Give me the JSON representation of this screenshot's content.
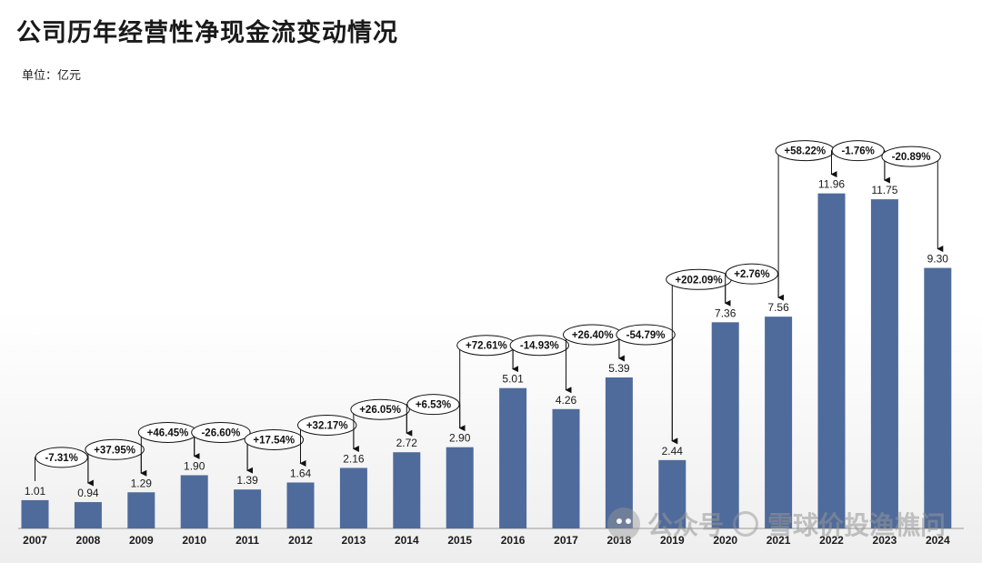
{
  "title": "公司历年经营性净现金流变动情况",
  "unit_label": "单位：亿元",
  "watermark": {
    "text_a": "公众号",
    "text_b": "雪球价投渔樵问"
  },
  "colors": {
    "bar": "#4f6b9b",
    "text": "#1a1a1a",
    "arrow": "#111111"
  },
  "chart_data": {
    "type": "bar",
    "title": "公司历年经营性净现金流变动情况",
    "ylabel": "",
    "xlabel": "",
    "ylim": [
      0,
      14
    ],
    "grid": false,
    "legend": "none",
    "categories": [
      "2007",
      "2008",
      "2009",
      "2010",
      "2011",
      "2012",
      "2013",
      "2014",
      "2015",
      "2016",
      "2017",
      "2018",
      "2019",
      "2020",
      "2021",
      "2022",
      "2023",
      "2024"
    ],
    "values": [
      1.01,
      0.94,
      1.29,
      1.9,
      1.39,
      1.64,
      2.16,
      2.72,
      2.9,
      5.01,
      4.26,
      5.39,
      2.44,
      7.36,
      7.56,
      11.96,
      11.75,
      9.3
    ],
    "value_labels": [
      "1.01",
      "0.94",
      "1.29",
      "1.90",
      "1.39",
      "1.64",
      "2.16",
      "2.72",
      "2.90",
      "5.01",
      "4.26",
      "5.39",
      "2.44",
      "7.36",
      "7.56",
      "11.96",
      "11.75",
      "9.30"
    ],
    "changes": [
      "-7.31%",
      "+37.95%",
      "+46.45%",
      "-26.60%",
      "+17.54%",
      "+32.17%",
      "+26.05%",
      "+6.53%",
      "+72.61%",
      "-14.93%",
      "+26.40%",
      "-54.79%",
      "+202.09%",
      "+2.76%",
      "+58.22%",
      "-1.76%",
      "-20.89%"
    ]
  }
}
